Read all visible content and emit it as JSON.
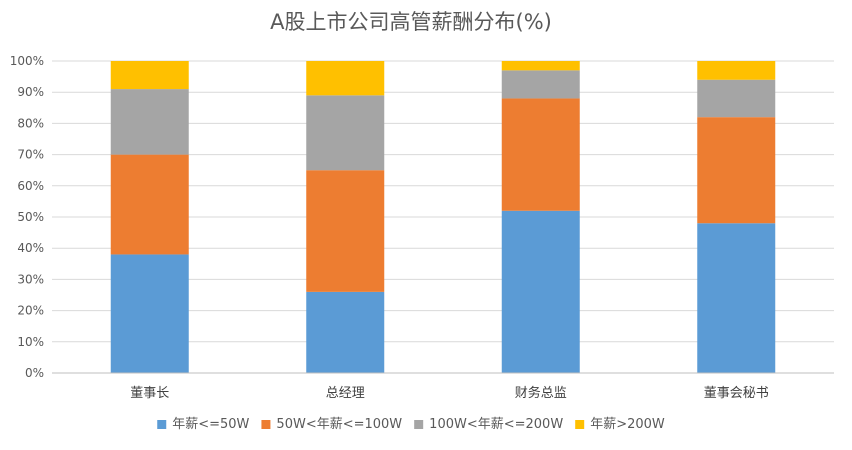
{
  "chart_data": {
    "type": "bar",
    "stacked": true,
    "percent": true,
    "title": "A股上市公司高管薪酬分布(%)",
    "categories": [
      "董事长",
      "总经理",
      "财务总监",
      "董事会秘书"
    ],
    "series": [
      {
        "name": "年薪<=50W",
        "color": "#5B9BD5",
        "values": [
          38,
          26,
          52,
          48
        ]
      },
      {
        "name": "50W<年薪<=100W",
        "color": "#ED7D31",
        "values": [
          32,
          39,
          36,
          34
        ]
      },
      {
        "name": "100W<年薪<=200W",
        "color": "#A5A5A5",
        "values": [
          21,
          24,
          9,
          12
        ]
      },
      {
        "name": "年薪>200W",
        "color": "#FFC000",
        "values": [
          9,
          11,
          3,
          6
        ]
      }
    ],
    "ylim": [
      0,
      100
    ],
    "yticks": [
      "0%",
      "10%",
      "20%",
      "30%",
      "40%",
      "50%",
      "60%",
      "70%",
      "80%",
      "90%",
      "100%"
    ],
    "grid": true,
    "legend_position": "bottom"
  }
}
